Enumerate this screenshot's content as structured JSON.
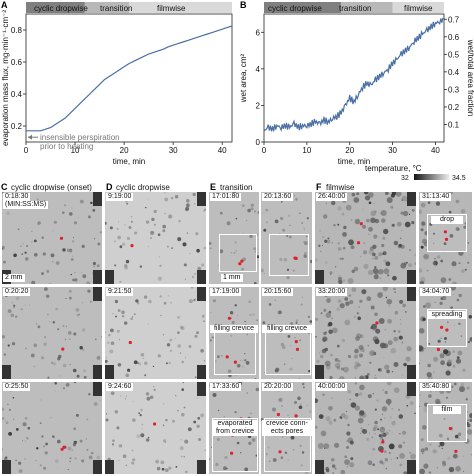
{
  "labels": {
    "A": "A",
    "B": "B",
    "C": "C",
    "D": "D",
    "E": "E",
    "F": "F"
  },
  "phases": {
    "dropwise": "cyclic dropwise",
    "transition": "transition",
    "filmwise": "filmwise"
  },
  "chart_data": [
    {
      "type": "line",
      "panel": "A",
      "xlabel": "time, min",
      "ylabel": "evaporation mass flux, mg·min⁻¹·cm⁻²",
      "xlim": [
        0,
        42
      ],
      "ylim": [
        0.1,
        0.9
      ],
      "xticks": [
        0,
        10,
        20,
        30,
        40
      ],
      "yticks": [
        0.2,
        0.4,
        0.6,
        0.8
      ],
      "phase_bands": [
        [
          0,
          12
        ],
        [
          12,
          21
        ],
        [
          21,
          42
        ]
      ],
      "annotation": "insensible perspiration\nprior to heating",
      "annotation_y": 0.13,
      "x": [
        0,
        1,
        2,
        3,
        4,
        5,
        6,
        7,
        8,
        9,
        10,
        11,
        12,
        13,
        14,
        15,
        16,
        17,
        18,
        19,
        20,
        21,
        22,
        23,
        24,
        25,
        26,
        27,
        28,
        29,
        30,
        31,
        32,
        33,
        34,
        35,
        36,
        37,
        38,
        39,
        40,
        41,
        42
      ],
      "y": [
        0.17,
        0.17,
        0.17,
        0.17,
        0.18,
        0.19,
        0.21,
        0.23,
        0.25,
        0.28,
        0.31,
        0.34,
        0.37,
        0.4,
        0.43,
        0.46,
        0.49,
        0.51,
        0.53,
        0.55,
        0.57,
        0.59,
        0.605,
        0.62,
        0.635,
        0.65,
        0.66,
        0.67,
        0.68,
        0.695,
        0.705,
        0.715,
        0.725,
        0.735,
        0.745,
        0.755,
        0.765,
        0.775,
        0.785,
        0.795,
        0.805,
        0.815,
        0.825
      ]
    },
    {
      "type": "line",
      "panel": "B",
      "xlabel": "time, min",
      "ylabel": "wet area, cm²",
      "ylabel_right": "wet/total area fraction",
      "xlim": [
        0,
        42
      ],
      "ylim": [
        0,
        7
      ],
      "xticks": [
        0,
        10,
        20,
        30,
        40
      ],
      "yticks": [
        0,
        2,
        4,
        6
      ],
      "yticks_right": [
        "0.1",
        "0.2",
        "0.3",
        "0.4",
        "0.5",
        "0.6",
        "0.7"
      ],
      "phase_bands": [
        [
          0,
          18
        ],
        [
          18,
          30
        ],
        [
          30,
          42
        ]
      ],
      "x": [
        0,
        1,
        2,
        3,
        4,
        5,
        6,
        7,
        8,
        9,
        10,
        11,
        12,
        13,
        14,
        15,
        16,
        17,
        18,
        19,
        20,
        21,
        22,
        23,
        24,
        25,
        26,
        27,
        28,
        29,
        30,
        31,
        32,
        33,
        34,
        35,
        36,
        37,
        38,
        39,
        40,
        41,
        42
      ],
      "y": [
        0.6,
        0.8,
        0.7,
        0.9,
        0.8,
        0.9,
        0.8,
        1.0,
        0.8,
        0.9,
        0.9,
        1.0,
        1.1,
        1.0,
        1.2,
        1.1,
        1.3,
        1.4,
        1.6,
        2.0,
        2.4,
        2.2,
        2.6,
        3.0,
        3.2,
        3.1,
        3.4,
        3.6,
        3.8,
        4.0,
        4.3,
        4.5,
        4.8,
        5.0,
        5.2,
        5.5,
        5.7,
        5.9,
        6.1,
        6.3,
        6.5,
        6.6,
        6.7
      ]
    }
  ],
  "colorbar": {
    "label": "temperature, °C",
    "min": "32",
    "max": "34.5"
  },
  "col_titles": {
    "C": "cyclic dropwise (onset)",
    "D": "cyclic dropwise",
    "E": "transition",
    "F": "filmwise"
  },
  "c_panels": [
    {
      "time": "0:18:30",
      "sub": "(MIN:SS:MS)",
      "scale": "2 mm"
    },
    {
      "time": "0:20:20"
    },
    {
      "time": "0:25:50"
    }
  ],
  "d_panels": [
    {
      "time": "9:19:00"
    },
    {
      "time": "9:21:50"
    },
    {
      "time": "9:24:60"
    }
  ],
  "e_left": [
    {
      "time": "17:01:80",
      "note": "",
      "scale": "1 mm"
    },
    {
      "time": "17:19:00",
      "note": "filling crevice"
    },
    {
      "time": "17:33:60",
      "note": "evaporated\nfrom crevice"
    }
  ],
  "e_right": [
    {
      "time": "20:13:60",
      "note": ""
    },
    {
      "time": "20:15:60",
      "note": "filling crevice"
    },
    {
      "time": "20:20:00",
      "note": "crevice conn-\nects pores"
    }
  ],
  "f_left": [
    {
      "time": "26:40:00"
    },
    {
      "time": "33:20:00"
    },
    {
      "time": "40:00:00"
    }
  ],
  "f_right": [
    {
      "time": "31:13:40",
      "note": "drop"
    },
    {
      "time": "34:04:70",
      "note": "spreading"
    },
    {
      "time": "35:40:80",
      "note": "film"
    }
  ],
  "colors": {
    "line": "#4a6fa5",
    "band_dark": "#7f7f7f",
    "band_mid": "#b8b8b8",
    "band_light": "#d9d9d9",
    "annot": "#777777",
    "marker": "#e0202a"
  }
}
